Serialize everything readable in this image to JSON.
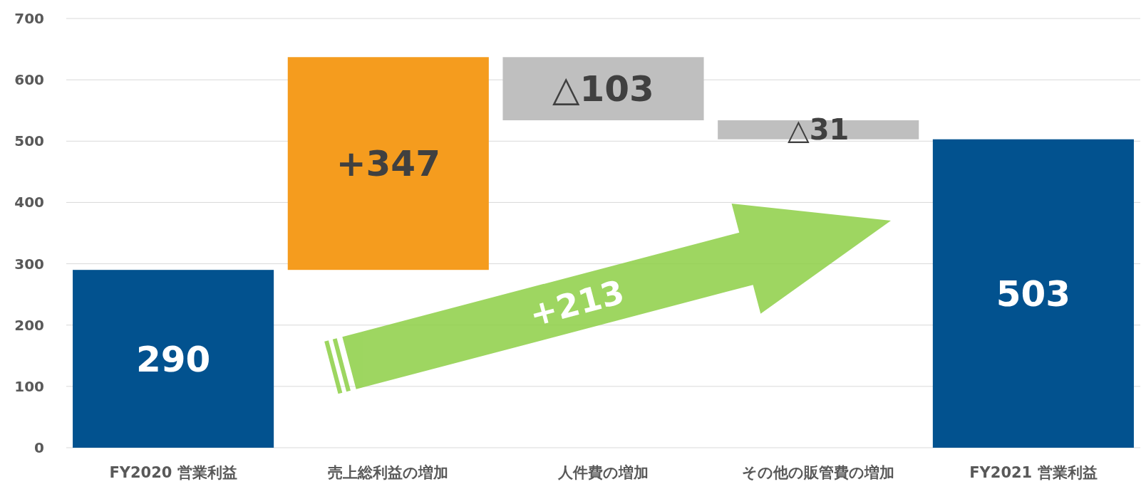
{
  "chart_data": {
    "type": "bar",
    "categories": [
      "FY2020 営業利益",
      "売上総利益の増加",
      "人件費の増加",
      "その他の販管費の増加",
      "FY2021 営業利益"
    ],
    "values": [
      290,
      347,
      -103,
      -31,
      503
    ],
    "base": [
      0,
      290,
      637,
      534,
      0
    ],
    "colors": [
      "#02528f",
      "#f59c1e",
      "#bfbfbf",
      "#bfbfbf",
      "#02528f"
    ],
    "value_labels": [
      "290",
      "+347",
      "△103",
      "△31",
      "503"
    ],
    "ylim": [
      0,
      700
    ],
    "yticks": [
      0,
      100,
      200,
      300,
      400,
      500,
      600,
      700
    ],
    "grid": "y",
    "annotations": [
      "+213"
    ]
  }
}
